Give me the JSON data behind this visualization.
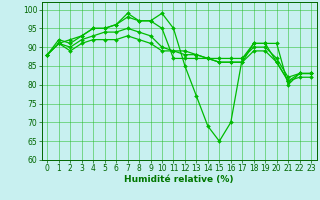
{
  "background_color": "#c8f0f0",
  "grid_color": "#22bb22",
  "line_color": "#00bb00",
  "marker_color": "#00bb00",
  "xlabel": "Humidité relative (%)",
  "xlabel_color": "#007700",
  "ylim": [
    60,
    102
  ],
  "xlim": [
    -0.5,
    23.5
  ],
  "yticks": [
    60,
    65,
    70,
    75,
    80,
    85,
    90,
    95,
    100
  ],
  "xticks": [
    0,
    1,
    2,
    3,
    4,
    5,
    6,
    7,
    8,
    9,
    10,
    11,
    12,
    13,
    14,
    15,
    16,
    17,
    18,
    19,
    20,
    21,
    22,
    23
  ],
  "series": [
    [
      88,
      91,
      92,
      93,
      95,
      95,
      96,
      99,
      97,
      97,
      99,
      95,
      85,
      77,
      69,
      65,
      70,
      87,
      91,
      91,
      91,
      80,
      83,
      83
    ],
    [
      88,
      92,
      91,
      93,
      95,
      95,
      96,
      98,
      97,
      97,
      95,
      87,
      87,
      87,
      87,
      86,
      86,
      86,
      91,
      91,
      86,
      81,
      83,
      83
    ],
    [
      88,
      91,
      90,
      92,
      93,
      94,
      94,
      95,
      94,
      93,
      90,
      89,
      89,
      88,
      87,
      87,
      87,
      87,
      90,
      90,
      87,
      82,
      83,
      83
    ],
    [
      88,
      91,
      89,
      91,
      92,
      92,
      92,
      93,
      92,
      91,
      89,
      89,
      88,
      88,
      87,
      86,
      86,
      86,
      89,
      89,
      86,
      81,
      82,
      82
    ]
  ],
  "tick_fontsize": 5.5,
  "xlabel_fontsize": 6.5,
  "linewidth": 0.9,
  "markersize": 2.0
}
